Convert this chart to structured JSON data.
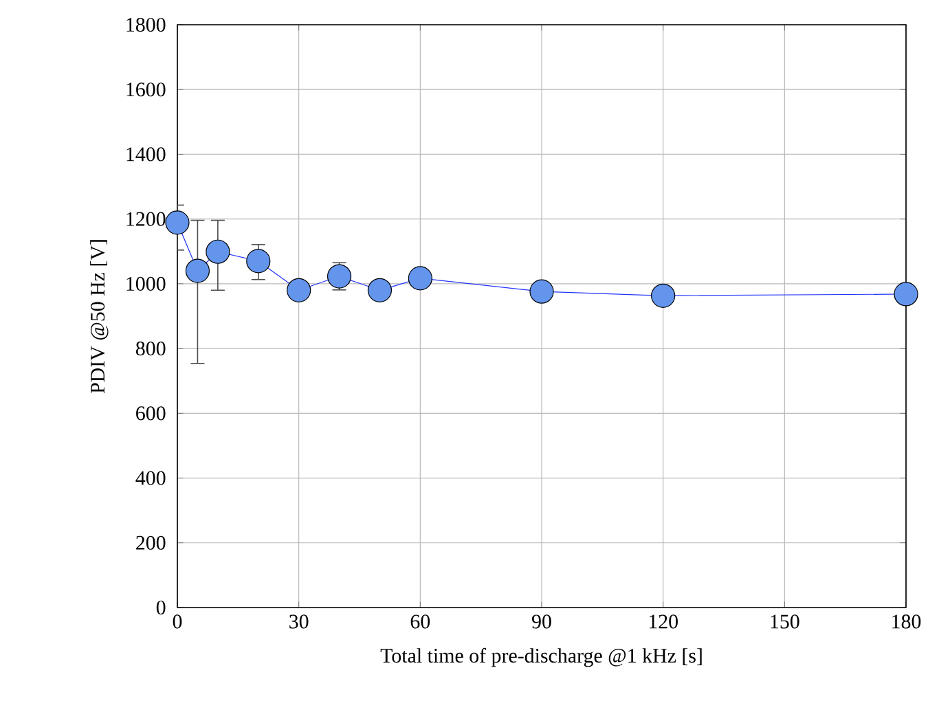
{
  "chart_data": {
    "type": "line",
    "xlabel": "Total time of pre-discharge @1 kHz [s]",
    "ylabel": "PDIV @50 Hz [V]",
    "x": [
      0,
      5,
      10,
      20,
      30,
      40,
      50,
      60,
      90,
      120,
      180
    ],
    "series": [
      {
        "color": "#6495ed",
        "values": [
          1189,
          1040,
          1099,
          1070,
          980,
          1023,
          980,
          1017,
          976,
          963,
          968
        ],
        "errors": [
          [
            1104,
            1243
          ],
          [
            754,
            1196
          ],
          [
            980,
            1196
          ],
          [
            1013,
            1121
          ],
          null,
          [
            981,
            1065
          ],
          null,
          null,
          null,
          null,
          null
        ]
      }
    ],
    "xlim": [
      0,
      180
    ],
    "xticks": [
      0,
      30,
      60,
      90,
      120,
      150,
      180
    ],
    "ylim": [
      0,
      1800
    ],
    "yticks": [
      0,
      200,
      400,
      600,
      800,
      1000,
      1200,
      1400,
      1600,
      1800
    ],
    "grid": true,
    "marker": "circle",
    "line_style": "solid"
  }
}
